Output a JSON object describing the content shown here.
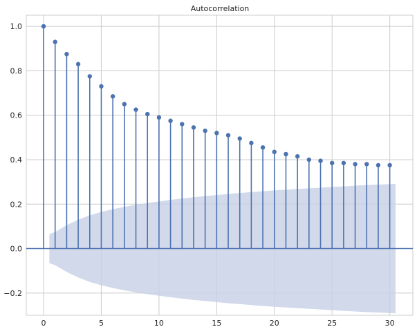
{
  "chart_data": {
    "type": "stem",
    "title": "Autocorrelation",
    "xlabel": "",
    "ylabel": "",
    "xlim": [
      -1.5,
      32
    ],
    "ylim": [
      -0.3,
      1.05
    ],
    "xticks": [
      0,
      5,
      10,
      15,
      20,
      25,
      30
    ],
    "yticks": [
      -0.2,
      0.0,
      0.2,
      0.4,
      0.6,
      0.8,
      1.0
    ],
    "ytick_labels": [
      "−0.2",
      "0.0",
      "0.2",
      "0.4",
      "0.6",
      "0.8",
      "1.0"
    ],
    "grid": true,
    "lags": [
      0,
      1,
      2,
      3,
      4,
      5,
      6,
      7,
      8,
      9,
      10,
      11,
      12,
      13,
      14,
      15,
      16,
      17,
      18,
      19,
      20,
      21,
      22,
      23,
      24,
      25,
      26,
      27,
      28,
      29,
      30
    ],
    "values": [
      1.0,
      0.93,
      0.875,
      0.83,
      0.775,
      0.73,
      0.685,
      0.65,
      0.625,
      0.605,
      0.59,
      0.575,
      0.56,
      0.545,
      0.53,
      0.52,
      0.51,
      0.495,
      0.475,
      0.455,
      0.435,
      0.425,
      0.415,
      0.4,
      0.395,
      0.385,
      0.385,
      0.38,
      0.38,
      0.375,
      0.375
    ],
    "confidence_band": {
      "x": [
        0.5,
        1,
        2,
        3,
        4,
        5,
        6,
        7,
        8,
        9,
        10,
        11,
        12,
        13,
        14,
        15,
        16,
        17,
        18,
        19,
        20,
        21,
        22,
        23,
        24,
        25,
        26,
        27,
        28,
        29,
        30,
        30.5
      ],
      "upper": [
        0.065,
        0.075,
        0.105,
        0.13,
        0.15,
        0.165,
        0.177,
        0.188,
        0.197,
        0.205,
        0.212,
        0.219,
        0.225,
        0.231,
        0.236,
        0.241,
        0.246,
        0.25,
        0.254,
        0.258,
        0.262,
        0.265,
        0.268,
        0.271,
        0.274,
        0.277,
        0.28,
        0.283,
        0.286,
        0.288,
        0.29,
        0.291
      ]
    },
    "colors": {
      "stem": "#4c72b0",
      "band": "#c5d0e6",
      "grid": "#cccccc",
      "zero_line": "#4c72b0"
    }
  }
}
